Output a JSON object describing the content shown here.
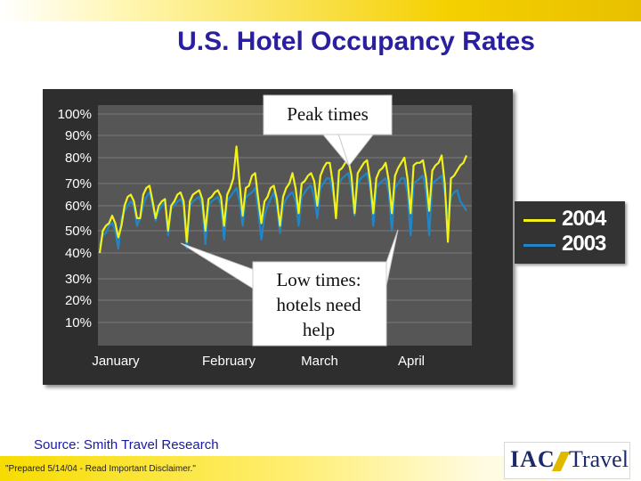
{
  "page": {
    "title": "U.S. Hotel Occupancy Rates",
    "source": "Source: Smith Travel Research",
    "disclaimer": "\"Prepared 5/14/04 - Read Important Disclaimer.\"",
    "logo": {
      "brand": "IAC",
      "suffix": "Travel"
    }
  },
  "colors": {
    "title": "#2a1fa0",
    "series_2004": "#f2f21a",
    "series_2003": "#1f86c8",
    "band": "#f5d000"
  },
  "chart_data": {
    "type": "line",
    "title": "U.S. Hotel Occupancy Rates",
    "xlabel": "",
    "ylabel": "",
    "x_labels": [
      "January",
      "February",
      "March",
      "April"
    ],
    "y_ticks": [
      "100%",
      "90%",
      "80%",
      "70%",
      "60%",
      "50%",
      "40%",
      "30%",
      "20%",
      "10%"
    ],
    "y_tick_values": [
      100,
      90,
      80,
      70,
      60,
      50,
      40,
      30,
      20,
      10
    ],
    "ylim": [
      0,
      100
    ],
    "legend": {
      "position": "right",
      "entries": [
        "2004",
        "2003"
      ]
    },
    "grid": true,
    "annotations": {
      "peak": "Peak times",
      "low": [
        "Low times:",
        "hotels need",
        "help"
      ]
    },
    "series": [
      {
        "name": "2004",
        "color": "#f2f21a",
        "values": [
          40,
          50,
          52,
          53,
          56,
          53,
          47,
          52,
          60,
          64,
          65,
          62,
          55,
          55,
          65,
          68,
          69,
          62,
          55,
          60,
          62,
          63,
          50,
          60,
          62,
          65,
          66,
          62,
          45,
          62,
          65,
          66,
          67,
          63,
          50,
          63,
          64,
          66,
          67,
          64,
          52,
          65,
          68,
          72,
          85,
          70,
          56,
          68,
          69,
          73,
          74,
          63,
          53,
          62,
          64,
          68,
          69,
          63,
          52,
          64,
          68,
          70,
          74,
          68,
          57,
          70,
          71,
          73,
          74,
          71,
          60,
          73,
          76,
          78,
          78,
          70,
          55,
          75,
          76,
          78,
          79,
          73,
          57,
          74,
          76,
          78,
          79,
          71,
          57,
          72,
          75,
          76,
          78,
          71,
          57,
          73,
          76,
          78,
          80,
          72,
          57,
          77,
          78,
          78,
          79,
          72,
          58,
          75,
          77,
          78,
          81,
          70,
          45,
          72,
          73,
          75,
          77,
          78,
          81
        ]
      },
      {
        "name": "2003",
        "color": "#1f86c8",
        "values": [
          43,
          48,
          49,
          52,
          53,
          50,
          42,
          55,
          58,
          60,
          62,
          60,
          52,
          55,
          60,
          64,
          66,
          60,
          54,
          58,
          60,
          62,
          48,
          59,
          60,
          62,
          63,
          60,
          42,
          60,
          62,
          63,
          64,
          60,
          44,
          60,
          62,
          63,
          64,
          60,
          46,
          62,
          64,
          66,
          68,
          62,
          52,
          64,
          65,
          66,
          68,
          58,
          46,
          56,
          60,
          63,
          66,
          60,
          49,
          60,
          63,
          65,
          66,
          62,
          52,
          64,
          66,
          68,
          69,
          64,
          55,
          68,
          70,
          72,
          72,
          66,
          58,
          70,
          72,
          73,
          74,
          68,
          56,
          70,
          72,
          73,
          74,
          68,
          52,
          68,
          70,
          71,
          72,
          66,
          50,
          68,
          70,
          72,
          72,
          66,
          48,
          70,
          71,
          72,
          73,
          66,
          48,
          70,
          71,
          72,
          73,
          66,
          56,
          64,
          66,
          67,
          62,
          60,
          58
        ]
      }
    ]
  }
}
